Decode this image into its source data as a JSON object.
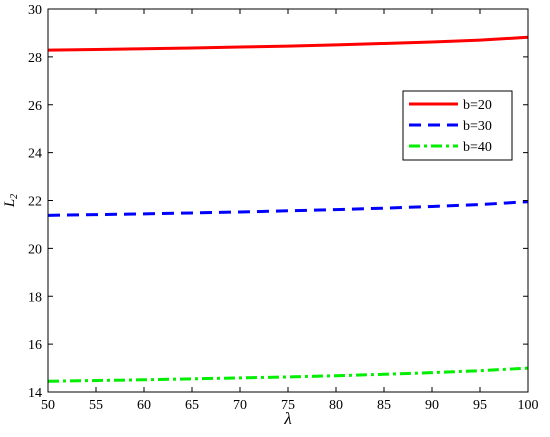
{
  "chart_data": {
    "type": "line",
    "title": "",
    "xlabel": "λ",
    "ylabel": "L",
    "ylabel_subscript": "2",
    "xlim": [
      50,
      100
    ],
    "ylim": [
      14,
      30
    ],
    "xticks": [
      50,
      55,
      60,
      65,
      70,
      75,
      80,
      85,
      90,
      95,
      100
    ],
    "yticks": [
      14,
      16,
      18,
      20,
      22,
      24,
      26,
      28,
      30
    ],
    "grid": false,
    "legend": "right",
    "x": [
      50,
      55,
      60,
      65,
      70,
      75,
      80,
      85,
      90,
      95,
      100
    ],
    "series": [
      {
        "name": "b=20",
        "color": "#ff0000",
        "style": "solid",
        "values": [
          28.28,
          28.31,
          28.34,
          28.37,
          28.41,
          28.45,
          28.5,
          28.56,
          28.62,
          28.7,
          28.82
        ]
      },
      {
        "name": "b=30",
        "color": "#0000ff",
        "style": "dashed",
        "values": [
          21.38,
          21.41,
          21.44,
          21.48,
          21.52,
          21.57,
          21.62,
          21.68,
          21.75,
          21.83,
          21.95
        ]
      },
      {
        "name": "b=40",
        "color": "#00ee00",
        "style": "dashdot",
        "values": [
          14.45,
          14.48,
          14.51,
          14.55,
          14.59,
          14.63,
          14.68,
          14.74,
          14.81,
          14.89,
          15.0
        ]
      }
    ]
  }
}
